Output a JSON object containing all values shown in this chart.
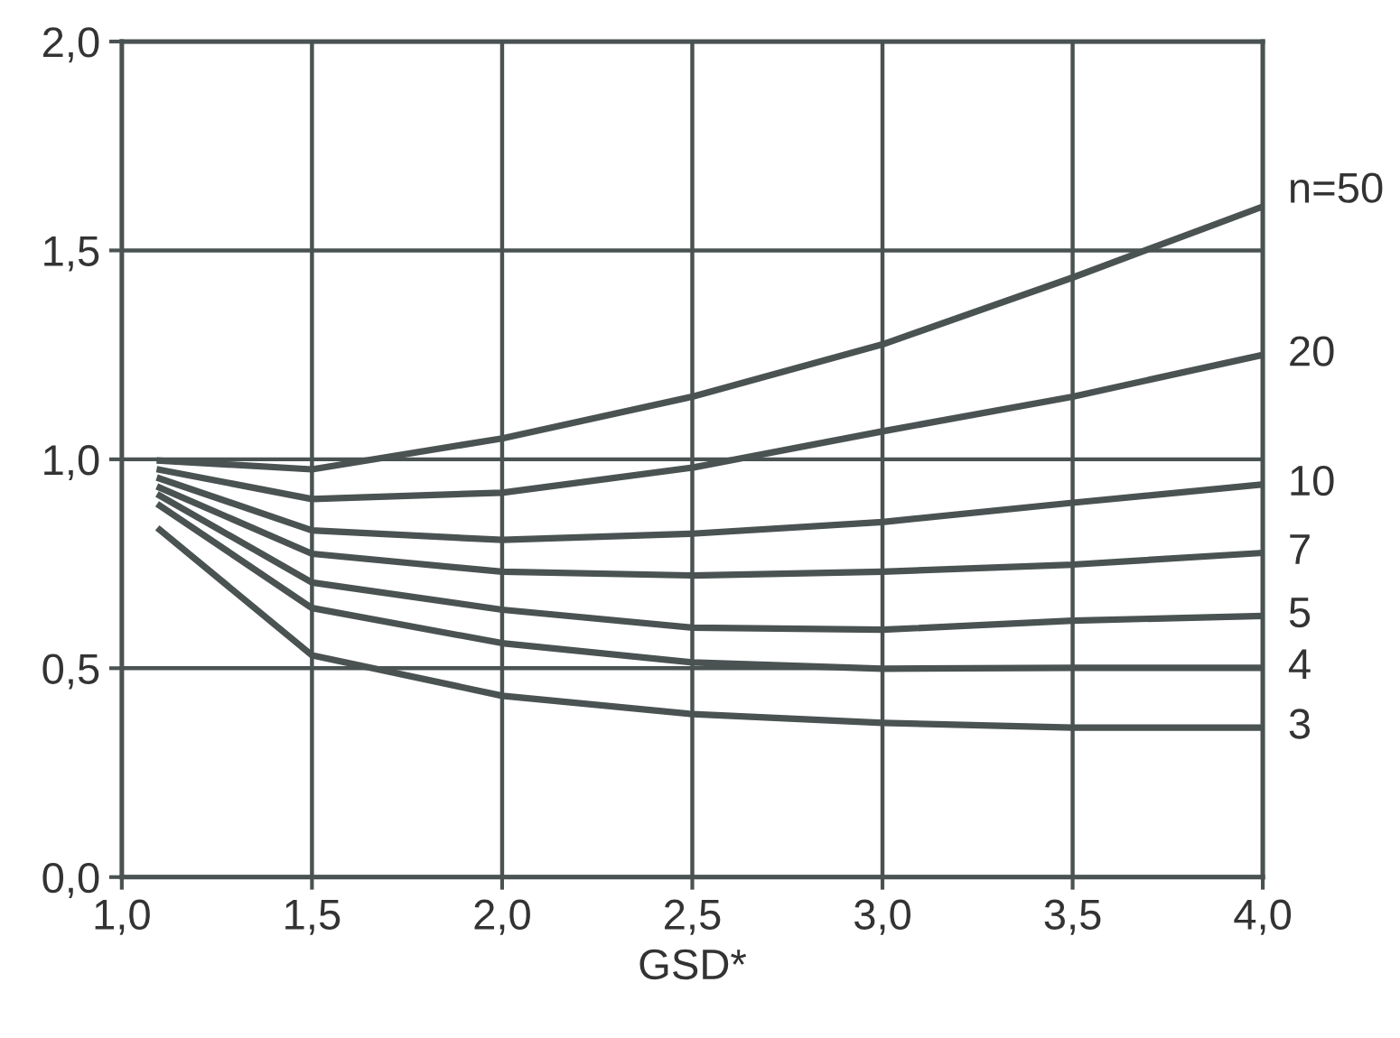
{
  "chart_data": {
    "type": "line",
    "xlabel": "GSD*",
    "xlim": [
      1.0,
      4.0
    ],
    "ylim": [
      0.0,
      2.0
    ],
    "xticks": [
      {
        "value": 1.0,
        "label": "1,0"
      },
      {
        "value": 1.5,
        "label": "1,5"
      },
      {
        "value": 2.0,
        "label": "2,0"
      },
      {
        "value": 2.5,
        "label": "2,5"
      },
      {
        "value": 3.0,
        "label": "3,0"
      },
      {
        "value": 3.5,
        "label": "3,5"
      },
      {
        "value": 4.0,
        "label": "4,0"
      }
    ],
    "yticks": [
      {
        "value": 0.0,
        "label": "0,0"
      },
      {
        "value": 0.5,
        "label": "0,5"
      },
      {
        "value": 1.0,
        "label": "1,0"
      },
      {
        "value": 1.5,
        "label": "1,5"
      },
      {
        "value": 2.0,
        "label": "2,0"
      }
    ],
    "grid": true,
    "marker": "none",
    "line_style": "solid",
    "x": [
      1.1,
      1.5,
      2.0,
      2.5,
      3.0,
      3.5,
      4.0
    ],
    "series": [
      {
        "name": "n=50",
        "color": "#4a5252",
        "values": [
          0.997,
          0.976,
          1.05,
          1.15,
          1.275,
          1.435,
          1.605
        ]
      },
      {
        "name": "20",
        "color": "#4a5252",
        "values": [
          0.975,
          0.905,
          0.92,
          0.98,
          1.067,
          1.15,
          1.25
        ]
      },
      {
        "name": "10",
        "color": "#4a5252",
        "values": [
          0.954,
          0.83,
          0.807,
          0.822,
          0.85,
          0.896,
          0.94
        ]
      },
      {
        "name": "7",
        "color": "#4a5252",
        "values": [
          0.932,
          0.774,
          0.731,
          0.722,
          0.731,
          0.748,
          0.776
        ]
      },
      {
        "name": "5",
        "color": "#4a5252",
        "values": [
          0.913,
          0.705,
          0.64,
          0.597,
          0.592,
          0.614,
          0.625
        ]
      },
      {
        "name": "4",
        "color": "#4a5252",
        "values": [
          0.889,
          0.644,
          0.56,
          0.514,
          0.499,
          0.501,
          0.501
        ]
      },
      {
        "name": "3",
        "color": "#4a5252",
        "values": [
          0.831,
          0.531,
          0.434,
          0.39,
          0.369,
          0.358,
          0.358
        ]
      }
    ]
  }
}
